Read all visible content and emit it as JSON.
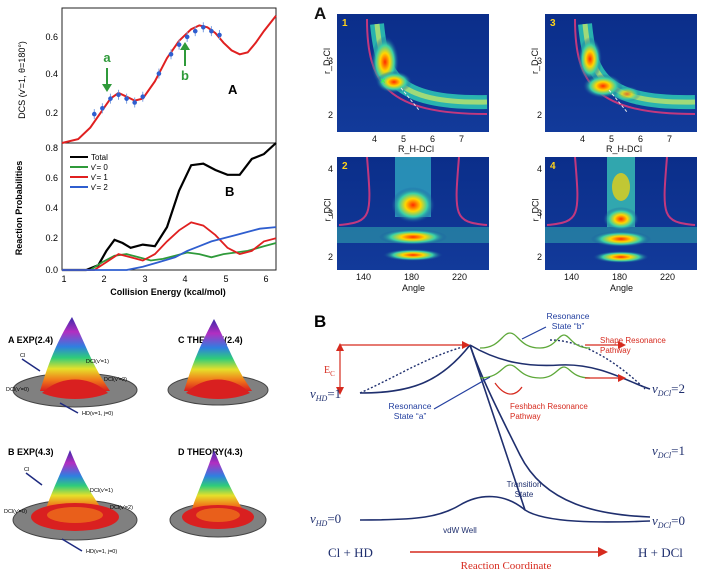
{
  "figure_left": {
    "panel_letter_top": "A",
    "panel_letter_bottom": "B",
    "xlabel": "Collision Energy (kcal/mol)",
    "x_ticks": [
      "1",
      "2",
      "3",
      "4",
      "5",
      "6"
    ],
    "top": {
      "ylabel": "DCS (v'=1, θ=180°)",
      "y_ticks": [
        "0.2",
        "0.4",
        "0.6"
      ],
      "annot_a": "a",
      "annot_b": "b"
    },
    "bottom": {
      "ylabel": "Reaction Probabilities",
      "y_ticks": [
        "0.0",
        "0.2",
        "0.4",
        "0.6",
        "0.8"
      ],
      "legend": [
        "Total",
        "v'= 0",
        "v'= 1",
        "v'= 2"
      ]
    }
  },
  "chart_data": [
    {
      "type": "line",
      "title": "",
      "xlabel": "Collision Energy (kcal/mol)",
      "ylabel": "DCS (v'=1, θ=180°)",
      "xlim": [
        1,
        6.3
      ],
      "ylim": [
        0,
        0.7
      ],
      "series": [
        {
          "name": "",
          "x": [
            1.0,
            1.4,
            1.7,
            2.0,
            2.2,
            2.4,
            2.6,
            2.8,
            3.0,
            3.3,
            3.6,
            3.9,
            4.2,
            4.4,
            4.6,
            4.8,
            5.0,
            5.2,
            5.4,
            5.6,
            5.8,
            6.0,
            6.3
          ],
          "y": [
            0.0,
            0.02,
            0.08,
            0.17,
            0.23,
            0.26,
            0.24,
            0.22,
            0.23,
            0.32,
            0.44,
            0.53,
            0.59,
            0.61,
            0.6,
            0.57,
            0.52,
            0.48,
            0.46,
            0.47,
            0.52,
            0.58,
            0.66
          ]
        },
        {
          "name": "",
          "x": [
            1.8,
            2.0,
            2.2,
            2.4,
            2.6,
            2.8,
            3.0,
            3.4,
            3.7,
            3.9,
            4.1,
            4.3,
            4.5,
            4.7,
            4.9
          ],
          "y": [
            0.15,
            0.18,
            0.23,
            0.25,
            0.23,
            0.21,
            0.24,
            0.36,
            0.46,
            0.51,
            0.55,
            0.58,
            0.6,
            0.58,
            0.56
          ]
        }
      ]
    },
    {
      "type": "line",
      "title": "",
      "xlabel": "Collision Energy (kcal/mol)",
      "ylabel": "Reaction Probabilities",
      "xlim": [
        1,
        6.3
      ],
      "ylim": [
        0,
        0.8
      ],
      "series": [
        {
          "name": "Total",
          "x": [
            1.0,
            1.6,
            1.9,
            2.1,
            2.3,
            2.5,
            2.7,
            3.0,
            3.3,
            3.6,
            3.9,
            4.2,
            4.5,
            4.8,
            5.1,
            5.4,
            5.7,
            6.0,
            6.3
          ],
          "y": [
            0.0,
            0.0,
            0.03,
            0.12,
            0.19,
            0.17,
            0.14,
            0.16,
            0.15,
            0.27,
            0.5,
            0.66,
            0.67,
            0.63,
            0.6,
            0.6,
            0.7,
            0.73,
            0.8
          ]
        },
        {
          "name": "v'= 0",
          "x": [
            1.0,
            1.7,
            2.0,
            2.3,
            2.6,
            2.9,
            3.2,
            3.5,
            3.8,
            4.1,
            4.4,
            4.7,
            5.0,
            5.3,
            5.6,
            6.0,
            6.3
          ],
          "y": [
            0.0,
            0.0,
            0.05,
            0.09,
            0.1,
            0.08,
            0.06,
            0.07,
            0.09,
            0.11,
            0.1,
            0.08,
            0.1,
            0.11,
            0.12,
            0.15,
            0.17
          ]
        },
        {
          "name": "v'= 1",
          "x": [
            1.0,
            1.8,
            2.1,
            2.4,
            2.7,
            3.0,
            3.3,
            3.6,
            3.9,
            4.2,
            4.5,
            4.8,
            5.1,
            5.4,
            5.7,
            6.0,
            6.3
          ],
          "y": [
            0.0,
            0.0,
            0.05,
            0.1,
            0.08,
            0.06,
            0.1,
            0.18,
            0.25,
            0.3,
            0.28,
            0.22,
            0.14,
            0.1,
            0.12,
            0.18,
            0.2
          ]
        },
        {
          "name": "v'= 2",
          "x": [
            1.0,
            2.6,
            3.0,
            3.4,
            3.8,
            4.1,
            4.4,
            4.7,
            5.0,
            5.3,
            5.6,
            5.9,
            6.3
          ],
          "y": [
            0.0,
            0.0,
            0.02,
            0.05,
            0.08,
            0.12,
            0.15,
            0.18,
            0.2,
            0.22,
            0.24,
            0.26,
            0.27
          ]
        }
      ]
    }
  ],
  "figure_heatmaps": {
    "big_letter": "A",
    "panel_numbers": [
      "1",
      "3",
      "2",
      "4"
    ],
    "top_ylabel": "r_D-Cl",
    "top_xlabel": "R_H-DCl",
    "top_y_ticks": [
      "3",
      "2"
    ],
    "top_x_ticks": [
      "4",
      "5",
      "6",
      "7"
    ],
    "bottom_ylabel": "r_DCl",
    "bottom_xlabel": "Angle",
    "bottom_y_ticks": [
      "4",
      "3",
      "2"
    ],
    "bottom_x_ticks": [
      "140",
      "180",
      "220"
    ]
  },
  "figure_3d": {
    "panels": [
      {
        "title": "A EXP(2.4)",
        "labels": [
          "Cl",
          "DCl(v'=1)",
          "DCl(v'=0)",
          "DCl(v'=2)",
          "HD(v=1, j=0)"
        ]
      },
      {
        "title": "C THEORY(2.4)"
      },
      {
        "title": "B EXP(4.3)",
        "labels": [
          "Cl",
          "DCl(v'=1)",
          "DCl(v'=0)",
          "DCl(v'=2)",
          "HD(v=1, j=0)"
        ]
      },
      {
        "title": "D THEORY(4.3)"
      }
    ]
  },
  "figure_diagram": {
    "big_letter": "B",
    "v_hd_1": "v",
    "v_hd_1_sub": "HD",
    "v_hd_1_val": "=1",
    "v_hd_0_val": "=0",
    "v_dcl_sub": "DCl",
    "v_dcl_2_val": "=2",
    "v_dcl_1_val": "=1",
    "v_dcl_0_val": "=0",
    "ec_label": "E",
    "ec_sub": "C",
    "resonance_b": [
      "Resonance",
      "State “b”"
    ],
    "resonance_a": [
      "Resonance",
      "State “a”"
    ],
    "shape_resonance": [
      "Shape Resonance",
      "Pathway"
    ],
    "feshbach": [
      "Feshbach Resonance",
      "Pathway"
    ],
    "vdw": "vdW Well",
    "transition": [
      "Transition",
      "State"
    ],
    "left_reactants": "Cl + HD",
    "right_products": "H + DCl",
    "reaction_coordinate": "Reaction Coordinate"
  },
  "colors": {
    "red": "#e02020",
    "green": "#2f9a3a",
    "blue_data": "#2f5ecf",
    "navy": "#1f2f6e",
    "arrow_red": "#d62a1e",
    "label_blue": "#2440a0"
  }
}
